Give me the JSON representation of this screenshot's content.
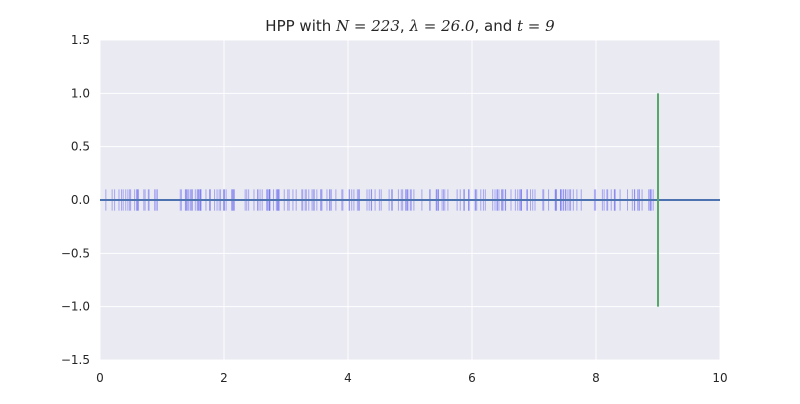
{
  "chart_data": {
    "type": "event_plot",
    "title_parts": [
      {
        "text": "HPP with ",
        "style": "normal"
      },
      {
        "text": "N = 223",
        "style": "math"
      },
      {
        "text": ", ",
        "style": "normal"
      },
      {
        "text": "λ = 26.0",
        "style": "math"
      },
      {
        "text": ", and ",
        "style": "normal"
      },
      {
        "text": "t = 9",
        "style": "math"
      }
    ],
    "xlabel": "",
    "ylabel": "",
    "xlim": [
      0,
      10
    ],
    "ylim": [
      -1.5,
      1.5
    ],
    "x_ticks": [
      0,
      2,
      4,
      6,
      8,
      10
    ],
    "y_ticks": [
      1.5,
      1.0,
      0.5,
      0.0,
      -0.5,
      -1.0,
      -1.5
    ],
    "x_tick_labels": [
      "0",
      "2",
      "4",
      "6",
      "8",
      "10"
    ],
    "y_tick_labels": [
      "1.5",
      "1.0",
      "0.5",
      "0.0",
      "−0.5",
      "−1.0",
      "−1.5"
    ],
    "grid": true,
    "colors": {
      "background": "#EAEAF2",
      "grid": "#FFFFFF",
      "events": "#6C6CF0",
      "baseline": "#4C72B0",
      "time_marker": "#55A868"
    },
    "baseline_y": 0,
    "event_mark_half_height": 0.1,
    "time_marker": {
      "x": 9,
      "y_range": [
        -1,
        1
      ]
    },
    "event_count": 223,
    "rate": 26.0,
    "horizon": 9
  }
}
